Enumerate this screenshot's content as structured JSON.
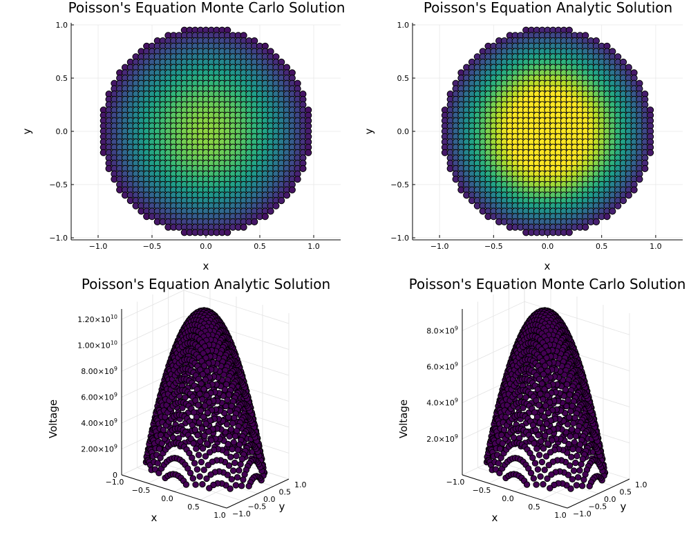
{
  "chart_data": [
    {
      "type": "scatter",
      "title": "Poisson's Equation Monte Carlo Solution",
      "xlabel": "x",
      "ylabel": "y",
      "xlim": [
        -1.25,
        1.25
      ],
      "ylim": [
        -1.0,
        1.0
      ],
      "xticks": [
        "−1.0",
        "−0.5",
        "0.0",
        "0.5",
        "1.0"
      ],
      "xtick_values": [
        -1.0,
        -0.5,
        0.0,
        0.5,
        1.0
      ],
      "yticks": [
        "−1.0",
        "−0.5",
        "0.0",
        "0.5",
        "1.0"
      ],
      "ytick_values": [
        -1.0,
        -0.5,
        0.0,
        0.5,
        1.0
      ],
      "grid_step": 0.05,
      "domain_radius": 0.98,
      "color_peak_fraction": 0.72,
      "colormap": "viridis",
      "marker_edge": "#000000",
      "grid": true
    },
    {
      "type": "scatter",
      "title": "Poisson's Equation Analytic Solution",
      "xlabel": "x",
      "ylabel": "y",
      "xlim": [
        -1.25,
        1.25
      ],
      "ylim": [
        -1.0,
        1.0
      ],
      "xticks": [
        "−1.0",
        "−0.5",
        "0.0",
        "0.5",
        "1.0"
      ],
      "xtick_values": [
        -1.0,
        -0.5,
        0.0,
        0.5,
        1.0
      ],
      "yticks": [
        "−1.0",
        "−0.5",
        "0.0",
        "0.5",
        "1.0"
      ],
      "ytick_values": [
        -1.0,
        -0.5,
        0.0,
        0.5,
        1.0
      ],
      "grid_step": 0.05,
      "domain_radius": 0.98,
      "color_peak_fraction": 1.0,
      "colormap": "viridis",
      "marker_edge": "#000000",
      "grid": true
    },
    {
      "type": "scatter3d",
      "title": "Poisson's Equation Analytic Solution",
      "xlabel": "x",
      "ylabel": "y",
      "zlabel": "Voltage",
      "xticks": [
        "−1.0",
        "−0.5",
        "0.0",
        "0.5",
        "1.0"
      ],
      "yticks": [
        "−1.0",
        "−0.5",
        "0.0",
        "0.5",
        "1.0"
      ],
      "zticks": [
        {
          "mantissa": "0",
          "exp": ""
        },
        {
          "mantissa": "2.00×10",
          "exp": "9"
        },
        {
          "mantissa": "4.00×10",
          "exp": "9"
        },
        {
          "mantissa": "6.00×10",
          "exp": "9"
        },
        {
          "mantissa": "8.00×10",
          "exp": "9"
        },
        {
          "mantissa": "1.00×10",
          "exp": "10"
        },
        {
          "mantissa": "1.20×10",
          "exp": "10"
        }
      ],
      "ztick_values": [
        0,
        2000000000.0,
        4000000000.0,
        6000000000.0,
        8000000000.0,
        10000000000.0,
        12000000000.0
      ],
      "zlim": [
        0,
        12800000000.0
      ],
      "peak_value": 12800000000.0,
      "marker_color": "#440154",
      "marker_edge": "#000000"
    },
    {
      "type": "scatter3d",
      "title": "Poisson's Equation Monte Carlo Solution",
      "xlabel": "x",
      "ylabel": "y",
      "zlabel": "Voltage",
      "xticks": [
        "−1.0",
        "−0.5",
        "0.0",
        "0.5",
        "1.0"
      ],
      "yticks": [
        "−1.0",
        "−0.5",
        "0.0",
        "0.5",
        "1.0"
      ],
      "zticks": [
        {
          "mantissa": "2.0×10",
          "exp": "9"
        },
        {
          "mantissa": "4.0×10",
          "exp": "9"
        },
        {
          "mantissa": "6.0×10",
          "exp": "9"
        },
        {
          "mantissa": "8.0×10",
          "exp": "9"
        }
      ],
      "ztick_values": [
        2000000000.0,
        4000000000.0,
        6000000000.0,
        8000000000.0
      ],
      "zlim": [
        0,
        9200000000.0
      ],
      "peak_value": 9200000000.0,
      "marker_color": "#440154",
      "marker_edge": "#000000"
    }
  ]
}
